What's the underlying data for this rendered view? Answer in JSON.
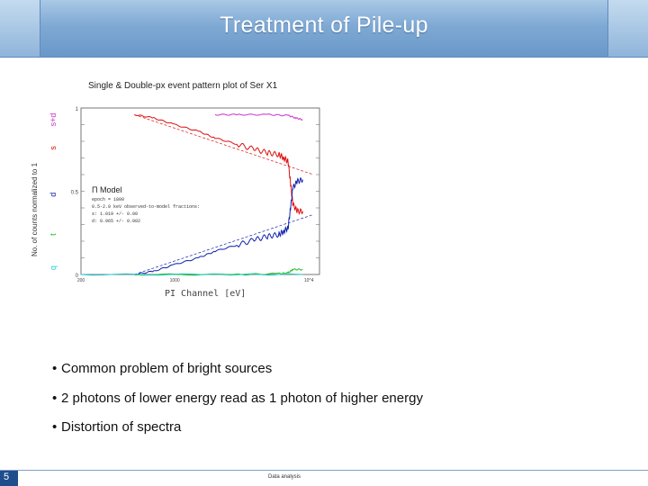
{
  "slide": {
    "title": "Treatment of Pile-up",
    "plot_caption": "Single & Double-px event pattern plot of Ser X1",
    "y_axis_label": "No. of counts normalized to 1",
    "x_axis_label": "PI Channel [eV]",
    "bullets": [
      "Common problem of bright sources",
      "2 photons of lower energy read as 1 photon of higher energy",
      "Distortion of spectra"
    ],
    "page_number": "5",
    "footer": "Data analysis"
  },
  "chart_data": {
    "type": "line",
    "xscale": "log",
    "xlim": [
      200,
      12000
    ],
    "ylim": [
      0,
      1
    ],
    "x_tick_labels": [
      "200",
      "1000",
      "10^4"
    ],
    "y_tick_labels": [
      "1",
      "0.5",
      "0"
    ],
    "pattern_labels": [
      "s+d",
      "s",
      "d",
      "t",
      "q"
    ],
    "legend_title": "Model",
    "legend_lines": [
      "epoch = 1800",
      "0.5-2.0 keV observed-to-model fractions:",
      "s: 1.019 +/- 0.00",
      "d: 0.965 +/- 0.002"
    ],
    "colors": {
      "sd": "#cc33cc",
      "s": "#dd1111",
      "d": "#1122aa",
      "t": "#22bb22",
      "q": "#22cccc"
    },
    "series": [
      {
        "name": "s+d",
        "points": [
          [
            2000,
            0.96
          ],
          [
            3000,
            0.96
          ],
          [
            5000,
            0.96
          ],
          [
            7000,
            0.955
          ],
          [
            8000,
            0.94
          ],
          [
            9000,
            0.93
          ]
        ]
      },
      {
        "name": "s",
        "points": [
          [
            500,
            0.96
          ],
          [
            700,
            0.94
          ],
          [
            1000,
            0.9
          ],
          [
            1500,
            0.86
          ],
          [
            2000,
            0.82
          ],
          [
            3000,
            0.78
          ],
          [
            4000,
            0.75
          ],
          [
            5000,
            0.73
          ],
          [
            6000,
            0.72
          ],
          [
            6500,
            0.7
          ],
          [
            7000,
            0.68
          ],
          [
            7300,
            0.55
          ],
          [
            7600,
            0.42
          ],
          [
            8200,
            0.38
          ],
          [
            9000,
            0.38
          ]
        ]
      },
      {
        "name": "d",
        "points": [
          [
            500,
            0.0
          ],
          [
            700,
            0.02
          ],
          [
            1000,
            0.06
          ],
          [
            1500,
            0.1
          ],
          [
            2000,
            0.14
          ],
          [
            3000,
            0.18
          ],
          [
            4000,
            0.21
          ],
          [
            5000,
            0.23
          ],
          [
            6000,
            0.24
          ],
          [
            6500,
            0.26
          ],
          [
            7000,
            0.28
          ],
          [
            7300,
            0.4
          ],
          [
            7600,
            0.52
          ],
          [
            8200,
            0.56
          ],
          [
            9000,
            0.57
          ]
        ]
      },
      {
        "name": "t",
        "points": [
          [
            500,
            0.0
          ],
          [
            3000,
            0.0
          ],
          [
            6000,
            0.005
          ],
          [
            7000,
            0.01
          ],
          [
            7600,
            0.03
          ],
          [
            9000,
            0.03
          ]
        ]
      },
      {
        "name": "q",
        "points": [
          [
            200,
            0.0
          ],
          [
            2000,
            0.0
          ],
          [
            9000,
            0.0
          ]
        ]
      }
    ]
  }
}
